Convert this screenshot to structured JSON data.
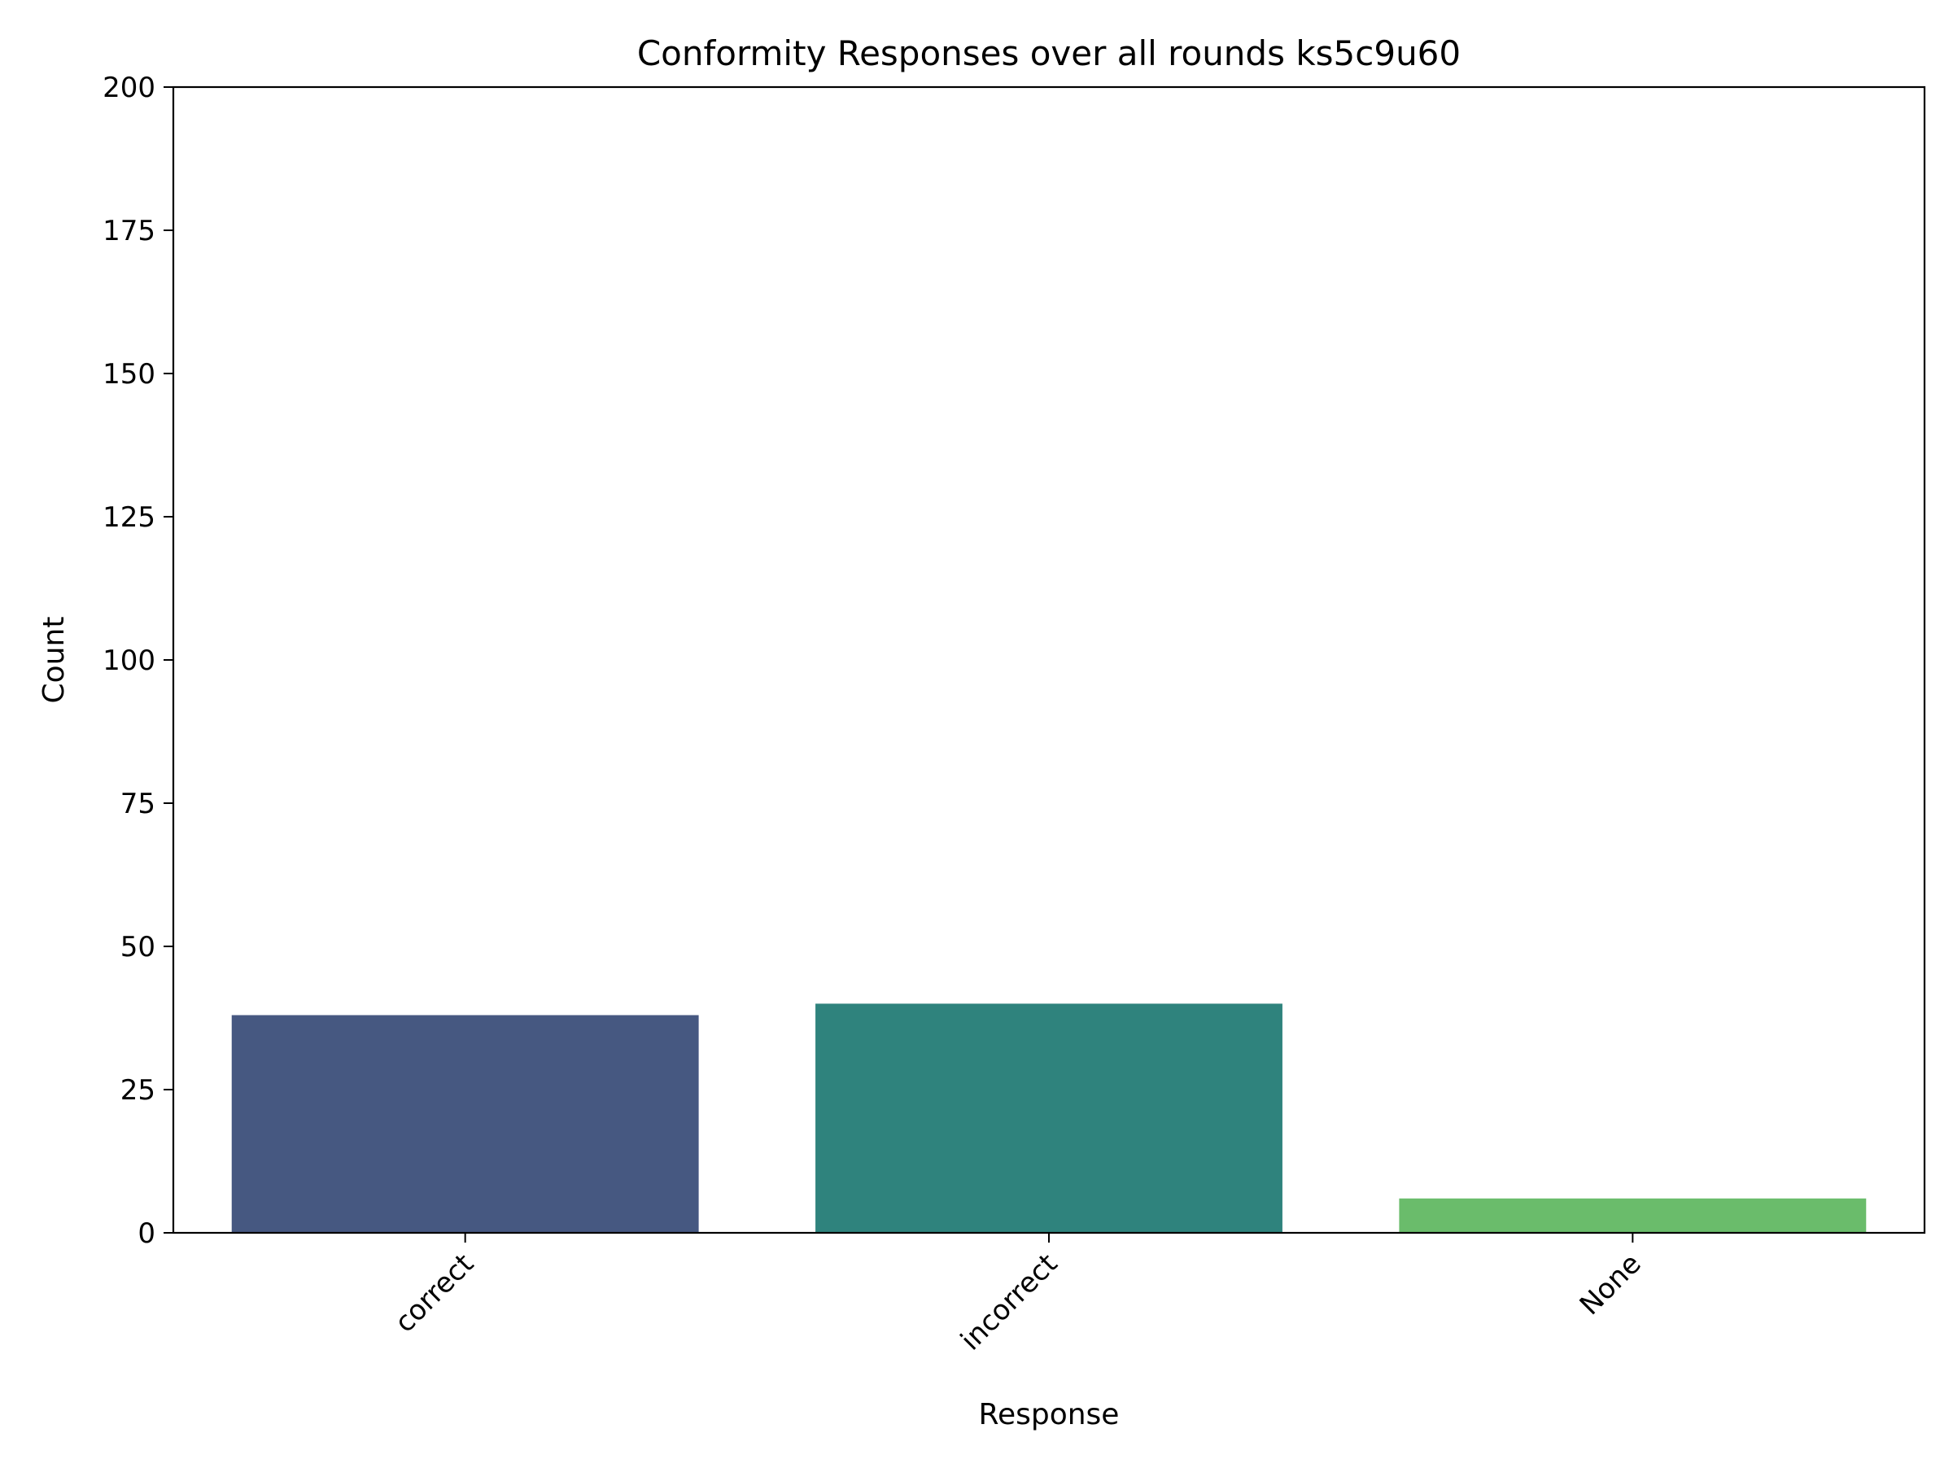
{
  "chart_data": {
    "type": "bar",
    "title": "Conformity Responses over all rounds ks5c9u60",
    "xlabel": "Response",
    "ylabel": "Count",
    "categories": [
      "correct",
      "incorrect",
      "None"
    ],
    "values": [
      38,
      40,
      6
    ],
    "bar_colors": [
      "#465881",
      "#2f837d",
      "#6abc6b"
    ],
    "ylim": [
      0,
      200
    ],
    "yticks": [
      0,
      25,
      50,
      75,
      100,
      125,
      150,
      175,
      200
    ],
    "x_tick_rotation": "45 degrees",
    "grid": false,
    "legend": "none"
  }
}
